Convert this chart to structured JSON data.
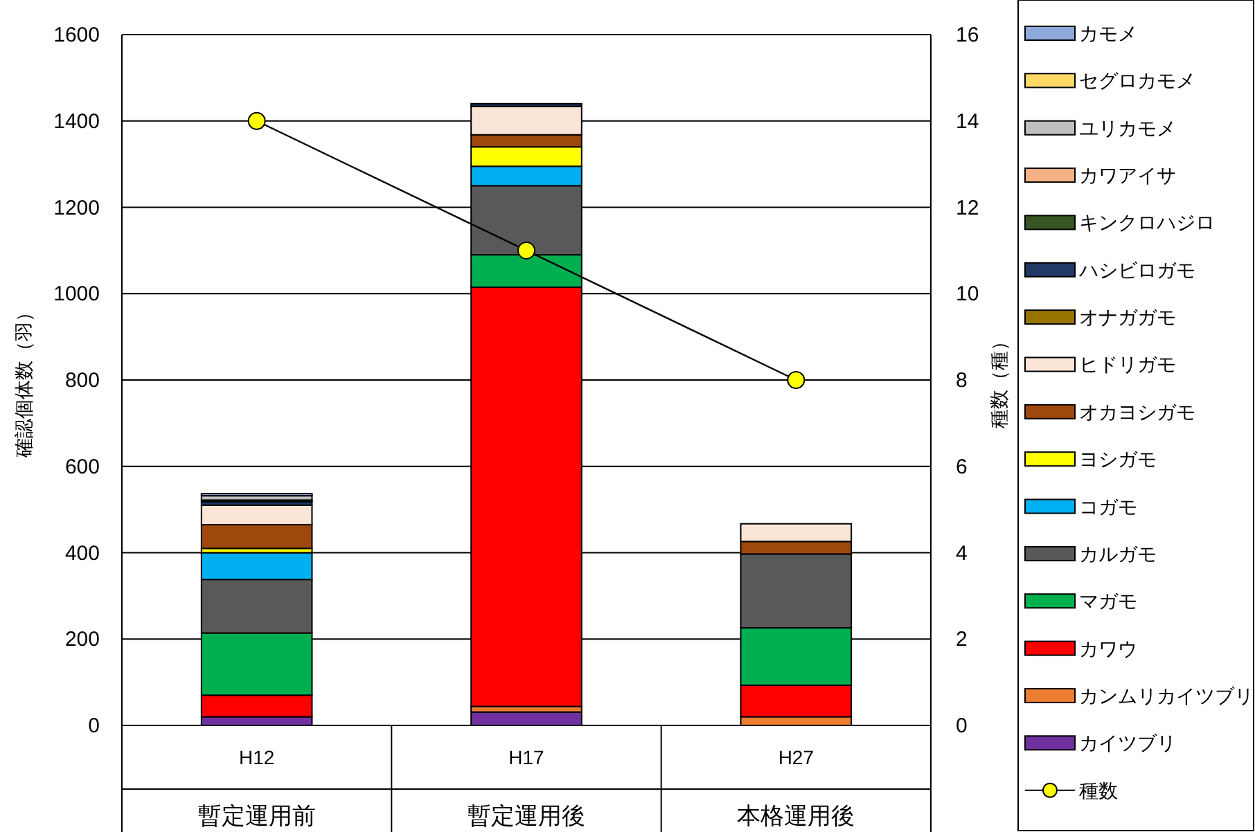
{
  "chart_data": {
    "type": "bar",
    "stacked": true,
    "ylabel": "確認個体数（羽）",
    "y2label": "種数（種）",
    "categories": [
      "H12\n暫定運用前",
      "H17\n暫定運用後",
      "H27\n本格運用後"
    ],
    "ylim": [
      0,
      1600
    ],
    "yticks": [
      0,
      200,
      400,
      600,
      800,
      1000,
      1200,
      1400,
      1600
    ],
    "y2lim": [
      0,
      16
    ],
    "y2ticks": [
      0,
      2,
      4,
      6,
      8,
      10,
      12,
      14,
      16
    ],
    "grid": "y",
    "legend": "right",
    "series": [
      {
        "name": "カイツブリ",
        "color": "#7030a0",
        "values": [
          20,
          31,
          0
        ]
      },
      {
        "name": "カンムリカイツブリ",
        "color": "#ed7d31",
        "values": [
          0,
          13,
          20
        ]
      },
      {
        "name": "カワウ",
        "color": "#ff0000",
        "values": [
          50,
          971,
          73
        ]
      },
      {
        "name": "マガモ",
        "color": "#00b050",
        "values": [
          144,
          75,
          133
        ]
      },
      {
        "name": "カルガモ",
        "color": "#595959",
        "values": [
          124,
          160,
          171
        ]
      },
      {
        "name": "コガモ",
        "color": "#00b0f0",
        "values": [
          62,
          45,
          0
        ]
      },
      {
        "name": "ヨシガモ",
        "color": "#ffff00",
        "values": [
          10,
          45,
          0
        ]
      },
      {
        "name": "オカヨシガモ",
        "color": "#9e480e",
        "values": [
          55,
          28,
          29
        ]
      },
      {
        "name": "ヒドリガモ",
        "color": "#fbe5d6",
        "values": [
          45,
          66,
          41
        ]
      },
      {
        "name": "オナガガモ",
        "color": "#997300",
        "values": [
          0,
          0,
          0
        ]
      },
      {
        "name": "ハシビロガモ",
        "color": "#1f3864",
        "values": [
          8,
          6,
          0
        ]
      },
      {
        "name": "キンクロハジロ",
        "color": "#375623",
        "values": [
          4,
          0,
          0
        ]
      },
      {
        "name": "カワアイサ",
        "color": "#f4b183",
        "values": [
          0,
          0,
          0
        ]
      },
      {
        "name": "ユリカモメ",
        "color": "#bfbfbf",
        "values": [
          10,
          0,
          0
        ]
      },
      {
        "name": "セグロカモメ",
        "color": "#ffd966",
        "values": [
          0,
          0,
          0
        ]
      },
      {
        "name": "カモメ",
        "color": "#8ea9db",
        "values": [
          5,
          0,
          0
        ]
      },
      {
        "name": "種数",
        "type": "line",
        "axis": "y2",
        "marker": "circle",
        "color": "#ffff00",
        "values": [
          14,
          11,
          8
        ]
      }
    ]
  }
}
